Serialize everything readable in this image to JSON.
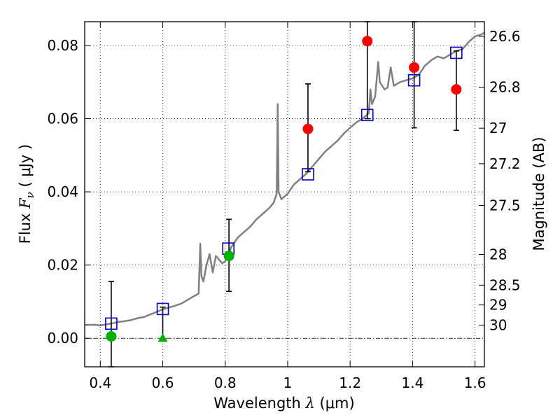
{
  "chart_data": {
    "type": "scatter",
    "xlabel": {
      "prefix": "Wavelength ",
      "symbol": "λ",
      "unit": " (μm)"
    },
    "ylabel": {
      "prefix": "Flux ",
      "symbol": "F",
      "subscript": "ν",
      "unit": " ( μJy )"
    },
    "y2label": "Magnitude (AB)",
    "xlim": [
      0.35,
      1.63
    ],
    "ylim": [
      -0.0078,
      0.0865
    ],
    "grid": true,
    "x_ticks": [
      {
        "value": 0.4,
        "label": "0.4"
      },
      {
        "value": 0.6,
        "label": "0.6"
      },
      {
        "value": 0.8,
        "label": "0.8"
      },
      {
        "value": 1.0,
        "label": "1"
      },
      {
        "value": 1.2,
        "label": "1.2"
      },
      {
        "value": 1.4,
        "label": "1.4"
      },
      {
        "value": 1.6,
        "label": "1.6"
      }
    ],
    "y_ticks": [
      {
        "value": 0.0,
        "label": "0.00"
      },
      {
        "value": 0.02,
        "label": "0.02"
      },
      {
        "value": 0.04,
        "label": "0.04"
      },
      {
        "value": 0.06,
        "label": "0.06"
      },
      {
        "value": 0.08,
        "label": "0.08"
      }
    ],
    "y2_ticks": [
      {
        "mag": "26.6",
        "flux": 0.0825
      },
      {
        "mag": "26.8",
        "flux": 0.0686
      },
      {
        "mag": "27",
        "flux": 0.0574
      },
      {
        "mag": "27.2",
        "flux": 0.0477
      },
      {
        "mag": "27.5",
        "flux": 0.0363
      },
      {
        "mag": "28",
        "flux": 0.0229
      },
      {
        "mag": "28.5",
        "flux": 0.0145
      },
      {
        "mag": "29",
        "flux": 0.0091
      },
      {
        "mag": "30",
        "flux": 0.0036
      }
    ],
    "zero_line": 0.0,
    "colors": {
      "spectrum": "#808080",
      "red": "#ff0000",
      "green": "#00b000",
      "model": "#0000cc",
      "errorbar": "#000000"
    },
    "spectrum": [
      [
        0.35,
        0.0036
      ],
      [
        0.38,
        0.0037
      ],
      [
        0.4,
        0.0035
      ],
      [
        0.42,
        0.0038
      ],
      [
        0.44,
        0.0041
      ],
      [
        0.46,
        0.0045
      ],
      [
        0.48,
        0.0047
      ],
      [
        0.5,
        0.005
      ],
      [
        0.52,
        0.0055
      ],
      [
        0.54,
        0.0058
      ],
      [
        0.56,
        0.0065
      ],
      [
        0.58,
        0.0072
      ],
      [
        0.6,
        0.0079
      ],
      [
        0.62,
        0.0084
      ],
      [
        0.64,
        0.0089
      ],
      [
        0.66,
        0.0095
      ],
      [
        0.68,
        0.0105
      ],
      [
        0.7,
        0.0115
      ],
      [
        0.715,
        0.0122
      ],
      [
        0.72,
        0.0258
      ],
      [
        0.724,
        0.017
      ],
      [
        0.73,
        0.0155
      ],
      [
        0.74,
        0.02
      ],
      [
        0.75,
        0.023
      ],
      [
        0.76,
        0.018
      ],
      [
        0.77,
        0.0225
      ],
      [
        0.78,
        0.0215
      ],
      [
        0.79,
        0.0205
      ],
      [
        0.8,
        0.021
      ],
      [
        0.82,
        0.025
      ],
      [
        0.84,
        0.0275
      ],
      [
        0.86,
        0.029
      ],
      [
        0.88,
        0.0305
      ],
      [
        0.9,
        0.0325
      ],
      [
        0.92,
        0.034
      ],
      [
        0.94,
        0.0355
      ],
      [
        0.955,
        0.037
      ],
      [
        0.965,
        0.0395
      ],
      [
        0.968,
        0.064
      ],
      [
        0.971,
        0.04
      ],
      [
        0.98,
        0.038
      ],
      [
        1.0,
        0.0395
      ],
      [
        1.02,
        0.042
      ],
      [
        1.04,
        0.0435
      ],
      [
        1.06,
        0.045
      ],
      [
        1.08,
        0.047
      ],
      [
        1.1,
        0.049
      ],
      [
        1.12,
        0.051
      ],
      [
        1.14,
        0.0525
      ],
      [
        1.16,
        0.054
      ],
      [
        1.18,
        0.056
      ],
      [
        1.2,
        0.0575
      ],
      [
        1.22,
        0.059
      ],
      [
        1.24,
        0.06
      ],
      [
        1.26,
        0.0615
      ],
      [
        1.265,
        0.068
      ],
      [
        1.27,
        0.064
      ],
      [
        1.28,
        0.066
      ],
      [
        1.29,
        0.0755
      ],
      [
        1.295,
        0.07
      ],
      [
        1.31,
        0.068
      ],
      [
        1.32,
        0.0685
      ],
      [
        1.33,
        0.074
      ],
      [
        1.34,
        0.069
      ],
      [
        1.36,
        0.07
      ],
      [
        1.38,
        0.0705
      ],
      [
        1.4,
        0.071
      ],
      [
        1.42,
        0.072
      ],
      [
        1.44,
        0.0745
      ],
      [
        1.46,
        0.076
      ],
      [
        1.48,
        0.077
      ],
      [
        1.5,
        0.0765
      ],
      [
        1.52,
        0.0775
      ],
      [
        1.54,
        0.0785
      ],
      [
        1.56,
        0.079
      ],
      [
        1.58,
        0.081
      ],
      [
        1.6,
        0.0825
      ],
      [
        1.62,
        0.083
      ],
      [
        1.63,
        0.0835
      ]
    ],
    "model_points": [
      {
        "x": 0.435,
        "y": 0.004
      },
      {
        "x": 0.6,
        "y": 0.008
      },
      {
        "x": 0.81,
        "y": 0.0245
      },
      {
        "x": 1.065,
        "y": 0.0448
      },
      {
        "x": 1.255,
        "y": 0.061
      },
      {
        "x": 1.405,
        "y": 0.0705
      },
      {
        "x": 1.54,
        "y": 0.078
      }
    ],
    "observed_points": [
      {
        "x": 0.435,
        "y": 0.0005,
        "ylo": -0.0078,
        "yhi": 0.0155,
        "color": "green",
        "marker": "circle"
      },
      {
        "x": 0.6,
        "y": 0.0,
        "ylo": 0.0,
        "yhi": 0.0085,
        "color": "green",
        "marker": "triangle"
      },
      {
        "x": 0.812,
        "y": 0.0225,
        "ylo": 0.0128,
        "yhi": 0.0325,
        "color": "green",
        "marker": "circle"
      },
      {
        "x": 1.065,
        "y": 0.0572,
        "ylo": 0.0455,
        "yhi": 0.0695,
        "color": "red",
        "marker": "circle"
      },
      {
        "x": 1.255,
        "y": 0.0812,
        "ylo": 0.06,
        "yhi": 0.0865,
        "color": "red",
        "marker": "circle"
      },
      {
        "x": 1.405,
        "y": 0.074,
        "ylo": 0.0575,
        "yhi": 0.0865,
        "color": "red",
        "marker": "circle"
      },
      {
        "x": 1.54,
        "y": 0.068,
        "ylo": 0.0568,
        "yhi": 0.0785,
        "color": "red",
        "marker": "circle"
      }
    ]
  }
}
